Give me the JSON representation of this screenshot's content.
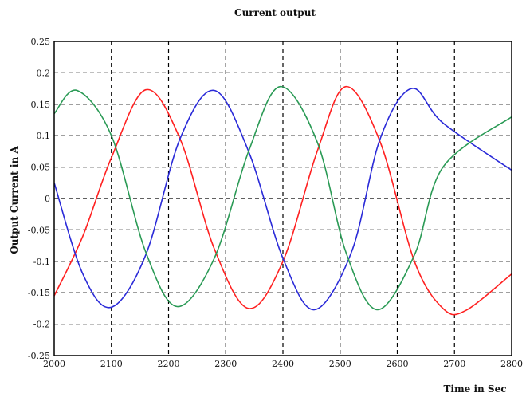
{
  "chart_data": {
    "type": "line",
    "title": "Current output",
    "xlabel": "Time in Sec",
    "ylabel": "Output Current in A",
    "xlim": [
      2000,
      2800
    ],
    "ylim": [
      -0.25,
      0.25
    ],
    "xticks": [
      "2000",
      "2100",
      "2200",
      "2300",
      "2400",
      "2500",
      "2600",
      "2700",
      "2800"
    ],
    "yticks": [
      "0.25",
      "0.2",
      "0.15",
      "0.1",
      "0.05",
      "0",
      "-0.05",
      "-0.1",
      "-0.15",
      "-0.2",
      "-0.25"
    ],
    "grid": true,
    "series": [
      {
        "color": "#ff2020",
        "points": [
          [
            2000,
            -0.155
          ],
          [
            2050,
            -0.06
          ],
          [
            2100,
            0.065
          ],
          [
            2160,
            0.173
          ],
          [
            2220,
            0.095
          ],
          [
            2280,
            -0.08
          ],
          [
            2340,
            -0.175
          ],
          [
            2400,
            -0.1
          ],
          [
            2460,
            0.075
          ],
          [
            2510,
            0.178
          ],
          [
            2570,
            0.09
          ],
          [
            2630,
            -0.1
          ],
          [
            2680,
            -0.175
          ],
          [
            2720,
            -0.178
          ],
          [
            2800,
            -0.12
          ]
        ]
      },
      {
        "color": "#2a2ad8",
        "points": [
          [
            2000,
            0.025
          ],
          [
            2050,
            -0.12
          ],
          [
            2100,
            -0.173
          ],
          [
            2160,
            -0.09
          ],
          [
            2220,
            0.095
          ],
          [
            2280,
            0.172
          ],
          [
            2340,
            0.075
          ],
          [
            2400,
            -0.095
          ],
          [
            2455,
            -0.177
          ],
          [
            2520,
            -0.085
          ],
          [
            2570,
            0.095
          ],
          [
            2625,
            0.175
          ],
          [
            2680,
            0.12
          ],
          [
            2800,
            0.045
          ]
        ]
      },
      {
        "color": "#2a9a55",
        "points": [
          [
            2000,
            0.135
          ],
          [
            2040,
            0.172
          ],
          [
            2100,
            0.1
          ],
          [
            2160,
            -0.085
          ],
          [
            2215,
            -0.172
          ],
          [
            2280,
            -0.095
          ],
          [
            2340,
            0.075
          ],
          [
            2395,
            0.178
          ],
          [
            2460,
            0.09
          ],
          [
            2510,
            -0.085
          ],
          [
            2565,
            -0.177
          ],
          [
            2630,
            -0.09
          ],
          [
            2680,
            0.05
          ],
          [
            2800,
            0.13
          ]
        ]
      }
    ]
  }
}
